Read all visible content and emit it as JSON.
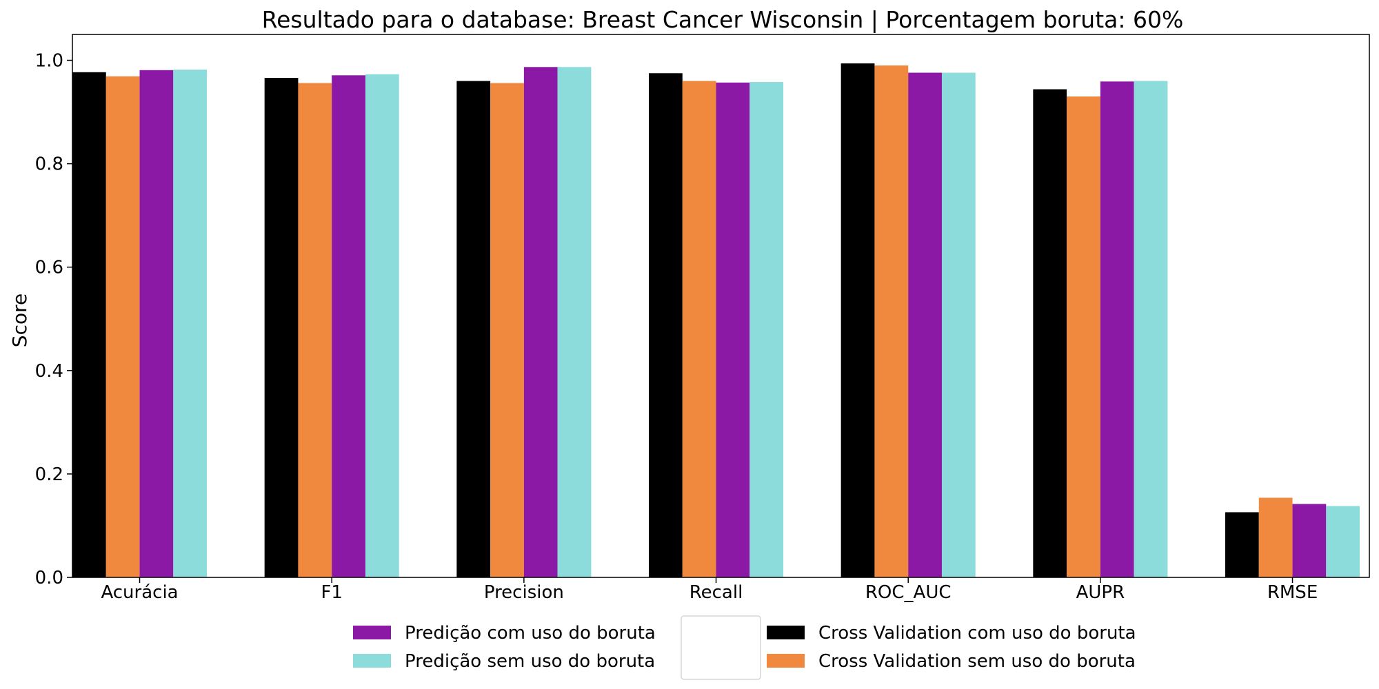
{
  "chart_data": {
    "type": "bar",
    "title": "Resultado para o database: Breast Cancer Wisconsin | Porcentagem boruta: 60%",
    "xlabel": "",
    "ylabel": "Score",
    "ylim": [
      0,
      1.05
    ],
    "yticks": [
      "0.0",
      "0.2",
      "0.4",
      "0.6",
      "0.8",
      "1.0"
    ],
    "categories": [
      "Acurácia",
      "F1",
      "Precision",
      "Recall",
      "ROC_AUC",
      "AUPR",
      "RMSE"
    ],
    "series": [
      {
        "name": "Cross Validation com uso do boruta",
        "color": "#000000",
        "values": [
          0.977,
          0.966,
          0.96,
          0.975,
          0.994,
          0.944,
          0.126
        ]
      },
      {
        "name": "Cross Validation sem uso do boruta",
        "color": "#f0883e",
        "values": [
          0.969,
          0.956,
          0.956,
          0.96,
          0.99,
          0.93,
          0.154
        ]
      },
      {
        "name": "Predição com uso do boruta",
        "color": "#8b19a5",
        "values": [
          0.981,
          0.971,
          0.987,
          0.957,
          0.976,
          0.959,
          0.142
        ]
      },
      {
        "name": "Predição sem uso do boruta",
        "color": "#8ddcdc",
        "values": [
          0.982,
          0.973,
          0.987,
          0.958,
          0.976,
          0.96,
          0.138
        ]
      }
    ],
    "grid": false,
    "legend": {
      "placement": "bottom-center",
      "left_column": [
        "Predição com uso do boruta",
        "Predição sem uso do boruta"
      ],
      "right_column": [
        "Cross Validation com uso do boruta",
        "Cross Validation sem uso do boruta"
      ]
    }
  }
}
